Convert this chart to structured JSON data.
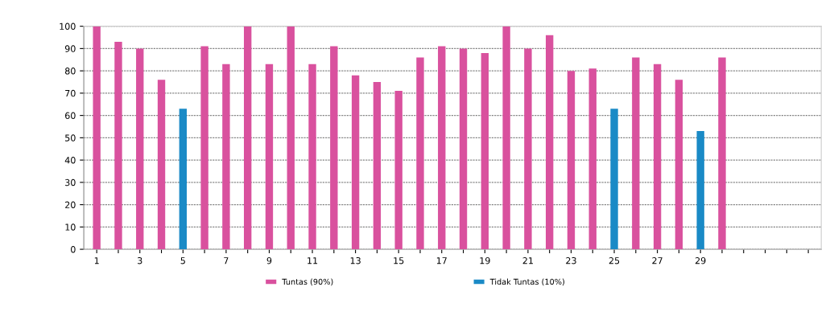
{
  "chart_data": {
    "type": "bar",
    "categories": [
      "1",
      null,
      "3",
      null,
      "5",
      null,
      "7",
      null,
      "9",
      null,
      "11",
      null,
      "13",
      null,
      "15",
      null,
      "17",
      null,
      "19",
      null,
      "21",
      null,
      "23",
      null,
      "25",
      null,
      "27",
      null,
      "29",
      null,
      null,
      null,
      null,
      null
    ],
    "series": [
      {
        "name": "Tuntas (90%)",
        "color": "#d9519e",
        "values": [
          100,
          93,
          90,
          76,
          null,
          91,
          83,
          100,
          83,
          100,
          83,
          91,
          78,
          75,
          71,
          86,
          91,
          90,
          88,
          100,
          90,
          96,
          80,
          81,
          null,
          86,
          83,
          76,
          null,
          86,
          null,
          null,
          null,
          null
        ]
      },
      {
        "name": "Tidak Tuntas (10%)",
        "color": "#1a8ac6",
        "values": [
          null,
          null,
          null,
          null,
          63,
          null,
          null,
          null,
          null,
          null,
          null,
          null,
          null,
          null,
          null,
          null,
          null,
          null,
          null,
          null,
          null,
          null,
          null,
          null,
          63,
          null,
          null,
          null,
          53,
          null,
          null,
          null,
          null,
          null
        ]
      }
    ],
    "ylim": [
      0,
      100
    ],
    "yticks": [
      0,
      10,
      20,
      30,
      40,
      50,
      60,
      70,
      80,
      90,
      100
    ],
    "grid": "y",
    "legend": "bottom"
  }
}
